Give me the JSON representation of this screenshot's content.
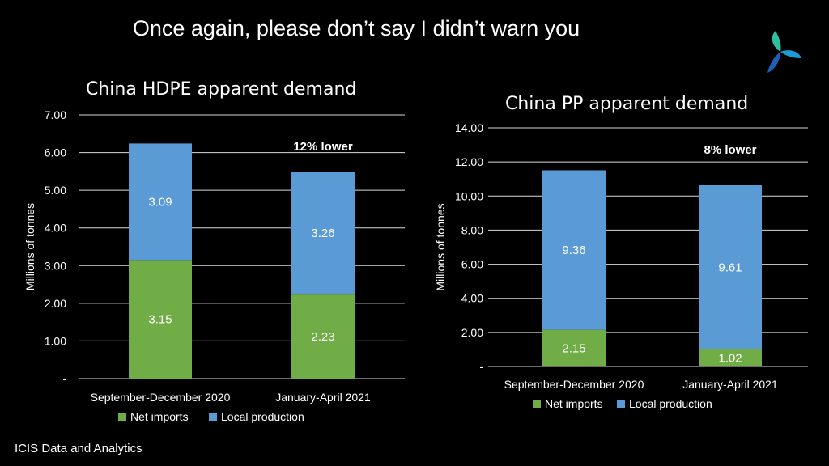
{
  "headline": "Once again, please don’t say I didn’t warn you",
  "footer": "ICIS Data and Analytics",
  "colors": {
    "net_imports": "#70ad47",
    "local_production": "#5b9bd5",
    "background": "#000000",
    "grid": "#d9d9d9"
  },
  "logo": {
    "icon": "trefoil-logo-icon"
  },
  "chart_data": [
    {
      "type": "bar",
      "stacked": true,
      "title": "China HDPE apparent demand",
      "ylabel": "Millions of tonnes",
      "xlabel": "",
      "ylim": [
        0,
        7
      ],
      "yticks": [
        "-",
        "1.00",
        "2.00",
        "3.00",
        "4.00",
        "5.00",
        "6.00",
        "7.00"
      ],
      "categories": [
        "September-December 2020",
        "January-April 2021"
      ],
      "series": [
        {
          "name": "Net imports",
          "values": [
            3.15,
            2.23
          ],
          "labels": [
            "3.15",
            "2.23"
          ]
        },
        {
          "name": "Local production",
          "values": [
            3.09,
            3.26
          ],
          "labels": [
            "3.09",
            "3.26"
          ]
        }
      ],
      "annotation": "12% lower",
      "grid": true,
      "legend": "bottom"
    },
    {
      "type": "bar",
      "stacked": true,
      "title": "China PP apparent demand",
      "ylabel": "Millions of tonnes",
      "xlabel": "",
      "ylim": [
        0,
        14
      ],
      "yticks": [
        "-",
        "2.00",
        "4.00",
        "6.00",
        "8.00",
        "10.00",
        "12.00",
        "14.00"
      ],
      "categories": [
        "September-December 2020",
        "January-April 2021"
      ],
      "series": [
        {
          "name": "Net imports",
          "values": [
            2.15,
            1.02
          ],
          "labels": [
            "2.15",
            "1.02"
          ]
        },
        {
          "name": "Local production",
          "values": [
            9.36,
            9.61
          ],
          "labels": [
            "9.36",
            "9.61"
          ]
        }
      ],
      "annotation": "8% lower",
      "grid": true,
      "legend": "bottom"
    }
  ]
}
